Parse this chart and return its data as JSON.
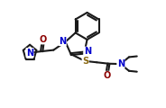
{
  "bg_color": "#ffffff",
  "bond_color": "#1a1a1a",
  "atom_colors": {
    "N": "#0000cd",
    "O": "#8b0000",
    "S": "#8b6914"
  },
  "linewidth": 1.5,
  "fontsize": 7.0,
  "xlim": [
    0,
    9.5
  ],
  "ylim": [
    0,
    6.5
  ]
}
